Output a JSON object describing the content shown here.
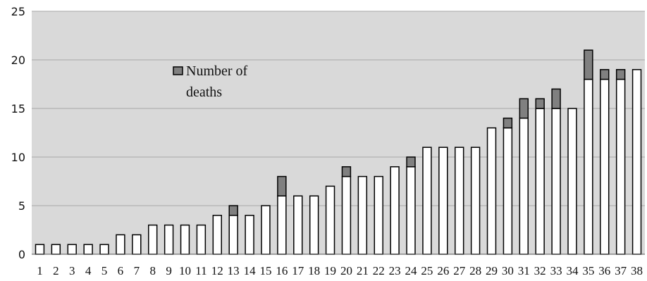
{
  "chart_data": {
    "type": "bar",
    "stacked": true,
    "categories": [
      "1",
      "2",
      "3",
      "4",
      "5",
      "6",
      "7",
      "8",
      "9",
      "10",
      "11",
      "12",
      "13",
      "14",
      "15",
      "16",
      "17",
      "18",
      "19",
      "20",
      "21",
      "22",
      "23",
      "24",
      "25",
      "26",
      "27",
      "28",
      "29",
      "30",
      "31",
      "32",
      "33",
      "34",
      "35",
      "36",
      "37",
      "38"
    ],
    "series": [
      {
        "name": "",
        "color": "#ffffff",
        "values": [
          1,
          1,
          1,
          1,
          1,
          2,
          2,
          3,
          3,
          3,
          3,
          4,
          4,
          4,
          5,
          6,
          6,
          6,
          7,
          8,
          8,
          8,
          9,
          9,
          11,
          11,
          11,
          11,
          13,
          13,
          14,
          15,
          15,
          15,
          18,
          18,
          18,
          19
        ]
      },
      {
        "name": "Number of deaths",
        "color": "#808080",
        "values": [
          0,
          0,
          0,
          0,
          0,
          0,
          0,
          0,
          0,
          0,
          0,
          0,
          1,
          0,
          0,
          2,
          0,
          0,
          0,
          1,
          0,
          0,
          0,
          1,
          0,
          0,
          0,
          0,
          0,
          1,
          2,
          1,
          2,
          0,
          3,
          1,
          1,
          0
        ]
      }
    ],
    "ylim": [
      0,
      25
    ],
    "yticks": [
      "0",
      "5",
      "10",
      "15",
      "20",
      "25"
    ],
    "grid": true,
    "legend_position": "upper-left-inside"
  }
}
